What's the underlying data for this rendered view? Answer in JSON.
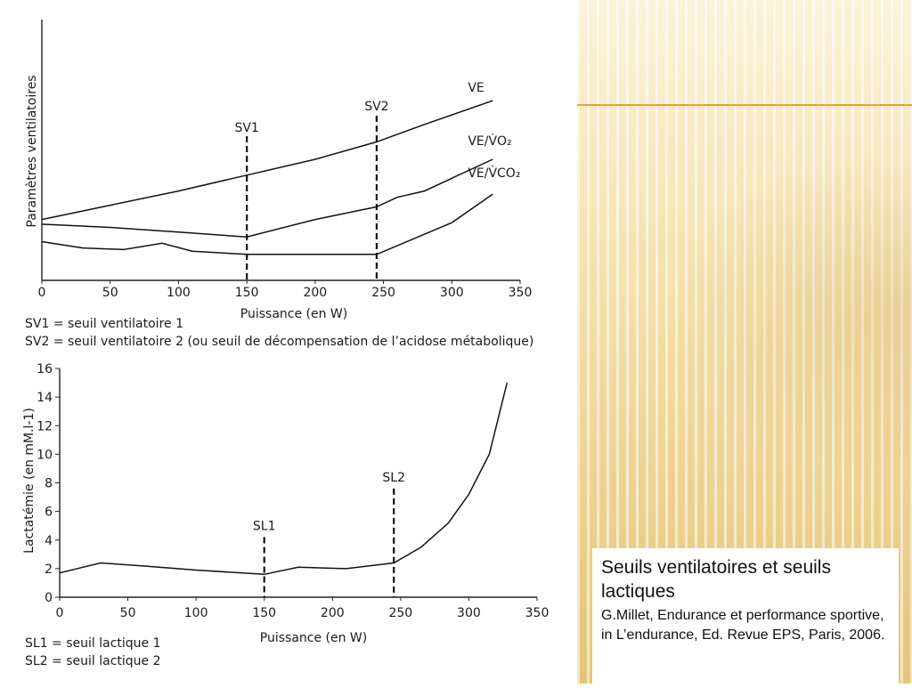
{
  "caption": {
    "title": "Seuils ventilatoires et seuils lactiques",
    "text": "G.Millet, Endurance et performance sportive, in L’endurance, Ed. Revue EPS, Paris, 2006."
  },
  "chart_data": [
    {
      "type": "line",
      "title": "",
      "xlabel": "Puissance (en W)",
      "ylabel": "Paramètres ventilatoires",
      "xlim": [
        0,
        350
      ],
      "xticks": [
        "0",
        "50",
        "100",
        "150",
        "200",
        "250",
        "300",
        "350"
      ],
      "series": [
        {
          "name": "VE",
          "x": [
            0,
            50,
            100,
            150,
            200,
            245,
            280,
            330
          ],
          "y": [
            0.3,
            0.39,
            0.48,
            0.58,
            0.68,
            0.79,
            0.9,
            1.05
          ]
        },
        {
          "name": "VE/V̇O₂",
          "x": [
            0,
            50,
            100,
            150,
            200,
            245,
            260,
            280,
            300,
            330
          ],
          "y": [
            0.27,
            0.25,
            0.22,
            0.19,
            0.3,
            0.38,
            0.44,
            0.48,
            0.56,
            0.68
          ]
        },
        {
          "name": "VE/V̇CO₂",
          "x": [
            0,
            30,
            60,
            88,
            110,
            150,
            245,
            300,
            330
          ],
          "y": [
            0.16,
            0.12,
            0.11,
            0.15,
            0.1,
            0.08,
            0.08,
            0.28,
            0.46
          ]
        }
      ],
      "thresholds": [
        {
          "label": "SV1",
          "x": 150
        },
        {
          "label": "SV2",
          "x": 245
        }
      ],
      "notes": [
        "SV1 = seuil ventilatoire 1",
        "SV2 = seuil ventilatoire 2 (ou seuil de décompensation de l’acidose métabolique)"
      ]
    },
    {
      "type": "line",
      "title": "",
      "xlabel": "Puissance (en W)",
      "ylabel": "Lactatémie (en mM.l-1)",
      "xlim": [
        0,
        350
      ],
      "ylim": [
        0,
        16
      ],
      "xticks": [
        "0",
        "50",
        "100",
        "150",
        "200",
        "250",
        "300",
        "350"
      ],
      "yticks": [
        "0",
        "2",
        "4",
        "6",
        "8",
        "10",
        "12",
        "14",
        "16"
      ],
      "series": [
        {
          "name": "",
          "x": [
            0,
            30,
            60,
            100,
            150,
            175,
            210,
            245,
            265,
            285,
            300,
            315,
            328
          ],
          "y": [
            1.7,
            2.4,
            2.2,
            1.9,
            1.6,
            2.1,
            2.0,
            2.4,
            3.5,
            5.2,
            7.2,
            10.0,
            15.0
          ]
        }
      ],
      "thresholds": [
        {
          "label": "SL1",
          "x": 150,
          "y_top": 4.2
        },
        {
          "label": "SL2",
          "x": 245,
          "y_top": 7.6
        }
      ],
      "notes": [
        "SL1 = seuil lactique 1",
        "SL2 = seuil lactique 2"
      ]
    }
  ]
}
